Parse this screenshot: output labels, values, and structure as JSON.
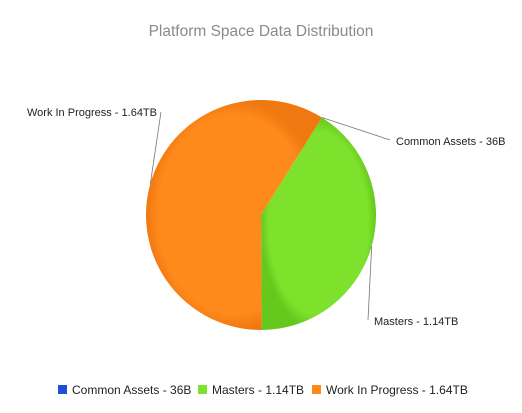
{
  "chart_data": {
    "type": "pie",
    "title": "Platform Space Data Distribution",
    "units": "TB",
    "slices": [
      {
        "name": "Common Assets",
        "value": 0,
        "label": "Common Assets - 36B",
        "color": "#1f4fd6"
      },
      {
        "name": "Masters",
        "value": 1.14,
        "label": "Masters - 1.14TB",
        "color": "#7ee22c"
      },
      {
        "name": "Work In Progress",
        "value": 1.64,
        "label": "Work In Progress - 1.64TB",
        "color": "#ff8a1c"
      }
    ],
    "legend_position": "bottom"
  }
}
